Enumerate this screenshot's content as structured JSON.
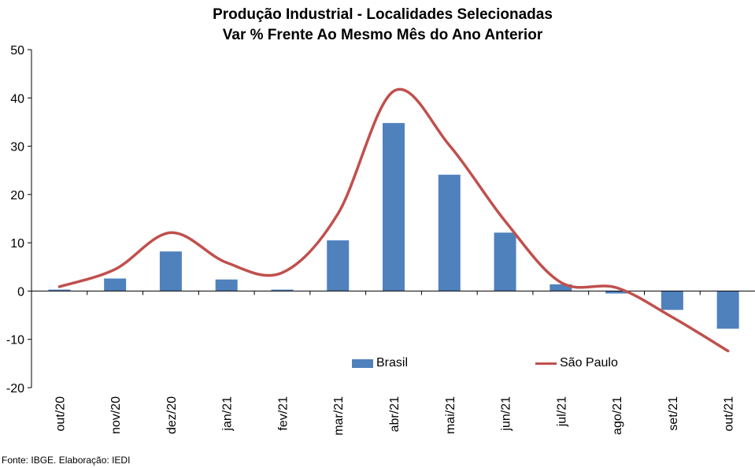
{
  "chart_data": {
    "type": "bar",
    "title": "Produção Industrial - Localidades Selecionadas",
    "subtitle": "Var % Frente Ao Mesmo Mês do Ano Anterior",
    "categories": [
      "out/20",
      "nov/20",
      "dez/20",
      "jan/21",
      "fev/21",
      "mar/21",
      "abr/21",
      "mai/21",
      "jun/21",
      "jul/21",
      "ago/21",
      "set/21",
      "out/21"
    ],
    "series": [
      {
        "name": "Brasil",
        "type": "bar",
        "color": "#4f81bd",
        "values": [
          0.3,
          2.6,
          8.2,
          2.4,
          0.3,
          10.5,
          34.8,
          24.1,
          12.1,
          1.4,
          -0.5,
          -3.9,
          -7.8
        ]
      },
      {
        "name": "São Paulo",
        "type": "line",
        "color": "#c0504d",
        "values": [
          0.9,
          4.5,
          12.1,
          5.9,
          3.8,
          16.0,
          41.4,
          30.2,
          14.5,
          1.8,
          0.7,
          -5.4,
          -12.4
        ]
      }
    ],
    "yticks": [
      -20,
      -10,
      0,
      10,
      20,
      30,
      40,
      50
    ],
    "ylim": [
      -20,
      50
    ],
    "xlabel": "",
    "ylabel": "",
    "legend": "inside-bottom",
    "grid": false
  },
  "source": "Fonte: IBGE. Elaboração: IEDI"
}
